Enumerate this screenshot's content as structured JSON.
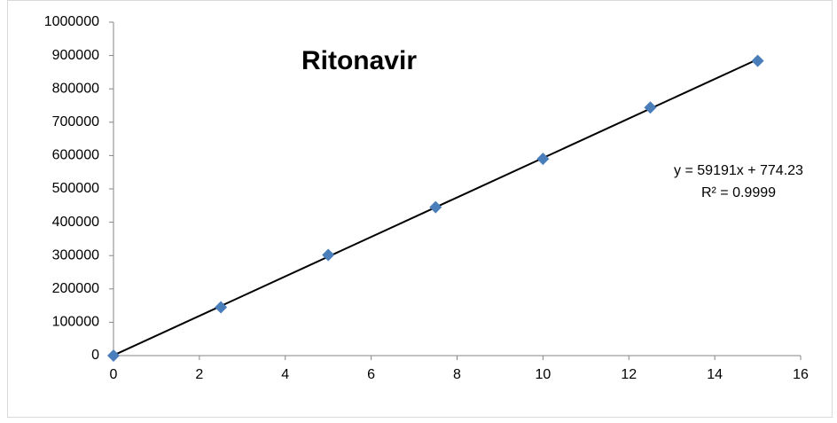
{
  "chart_data": {
    "type": "scatter",
    "title": "Ritonavir",
    "series": [
      {
        "name": "Ritonavir",
        "color": "#4a7ebb",
        "x": [
          0,
          2.5,
          5,
          7.5,
          10,
          12.5,
          15
        ],
        "values": [
          0,
          145000,
          302000,
          445000,
          590000,
          744000,
          884000
        ]
      }
    ],
    "xlim": [
      0,
      16
    ],
    "xticks": [
      0,
      2,
      4,
      6,
      8,
      10,
      12,
      14,
      16
    ],
    "ylim": [
      0,
      1000000
    ],
    "yticks": [
      0,
      100000,
      200000,
      300000,
      400000,
      500000,
      600000,
      700000,
      800000,
      900000,
      1000000
    ],
    "grid": false,
    "trendline": {
      "slope": 59191,
      "intercept": 774.23,
      "color": "#000000",
      "equation": "y = 59191x + 774.23",
      "r_squared": "R² = 0.9999"
    }
  }
}
